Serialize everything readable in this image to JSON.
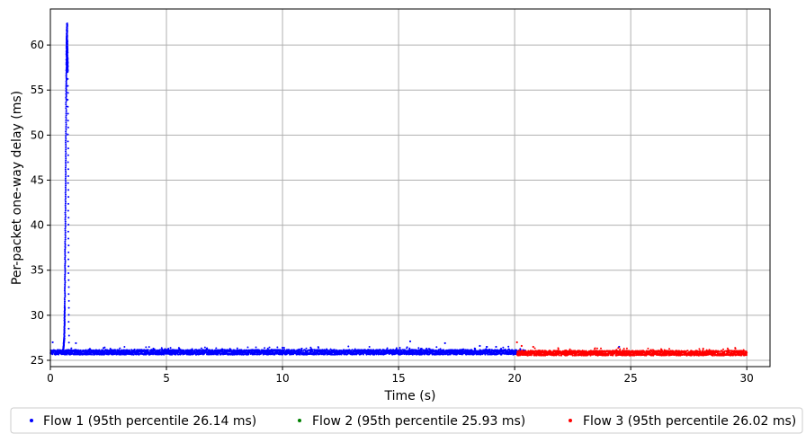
{
  "chart_data": {
    "type": "scatter",
    "xlabel": "Time (s)",
    "ylabel": "Per-packet one-way delay (ms)",
    "xlim": [
      0,
      31
    ],
    "ylim": [
      24.3,
      64.0
    ],
    "xticks": [
      0,
      5,
      10,
      15,
      20,
      25,
      30
    ],
    "yticks": [
      25,
      30,
      35,
      40,
      45,
      50,
      55,
      60
    ],
    "grid": true,
    "legend_position": "bottom",
    "series": [
      {
        "name": "Flow 1 (95th percentile 26.14 ms)",
        "color": "#0000ff",
        "x_range": [
          0.0,
          20.5
        ],
        "baseline": 25.9,
        "spike": {
          "x": [
            0.55,
            0.6,
            0.62,
            0.64,
            0.66,
            0.68,
            0.7,
            0.72,
            0.75,
            0.8
          ],
          "y": [
            26.0,
            27.5,
            31.0,
            38.0,
            46.0,
            54.0,
            60.0,
            62.4,
            57.0,
            26.2
          ]
        },
        "outliers": [
          [
            0.1,
            27.0
          ],
          [
            1.1,
            26.9
          ],
          [
            15.5,
            27.1
          ],
          [
            17.0,
            26.9
          ],
          [
            18.5,
            26.6
          ],
          [
            19.2,
            26.5
          ],
          [
            24.5,
            26.5
          ],
          [
            10.0,
            26.4
          ]
        ]
      },
      {
        "name": "Flow 2 (95th percentile 25.93 ms)",
        "color": "#008000"
      },
      {
        "name": "Flow 3 (95th percentile 26.02 ms)",
        "color": "#ff0000",
        "x_range": [
          20.1,
          30.0
        ],
        "baseline": 25.8,
        "outliers": [
          [
            20.1,
            27.0
          ],
          [
            20.3,
            26.6
          ],
          [
            20.8,
            26.5
          ]
        ]
      }
    ]
  }
}
